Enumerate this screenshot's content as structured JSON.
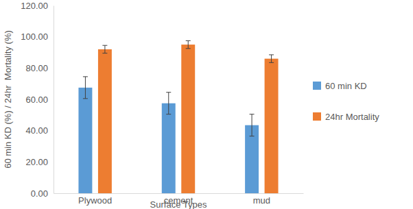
{
  "chart_data": {
    "type": "bar",
    "x_label": "Surface Types",
    "y_label": "60 min KD (%) / 24hr  Mortality (%)",
    "categories": [
      "Plywood",
      "cement",
      "mud"
    ],
    "series": [
      {
        "name": "60 min KD",
        "color": "#5b9bd5",
        "values": [
          67.5,
          57.5,
          43.5
        ],
        "errors": [
          7,
          7,
          7
        ]
      },
      {
        "name": "24hr Mortality",
        "color": "#ed7d31",
        "values": [
          92,
          95,
          86
        ],
        "errors": [
          2.5,
          2.5,
          2.5
        ]
      }
    ],
    "ylim": [
      0,
      120
    ],
    "yticks": [
      {
        "value": 0,
        "label": "0.00"
      },
      {
        "value": 20,
        "label": "20.00"
      },
      {
        "value": 40,
        "label": "40.00"
      },
      {
        "value": 60,
        "label": "60.00"
      },
      {
        "value": 80,
        "label": "80.00"
      },
      {
        "value": 100,
        "label": "100.00"
      },
      {
        "value": 120,
        "label": "120.00"
      }
    ],
    "grid": false,
    "legend": "right"
  }
}
